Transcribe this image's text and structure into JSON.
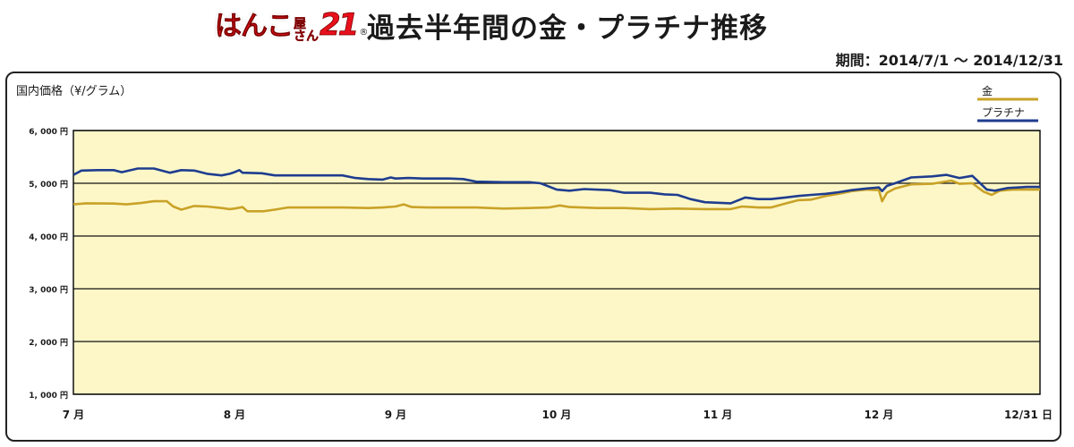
{
  "header": {
    "logo_main": "はんこ",
    "logo_sub1": "屋",
    "logo_sub2": "さん",
    "logo_num": "21",
    "logo_mark": "®",
    "title": "過去半年間の金・プラチナ推移",
    "period": "期間：2014/7/1 〜 2014/12/31"
  },
  "colors": {
    "gold": "#c9a227",
    "platinum": "#1f3d8f",
    "plot_bg": "#fdf7c8",
    "grid": "#111111"
  },
  "chart_data": {
    "type": "line",
    "ylabel": "国内価格（¥/グラム）",
    "ylim": [
      1000,
      6000
    ],
    "yticks": [
      {
        "value": 6000,
        "label": "6, 000 円"
      },
      {
        "value": 5000,
        "label": "5, 000 円"
      },
      {
        "value": 4000,
        "label": "4, 000 円"
      },
      {
        "value": 3000,
        "label": "3, 000 円"
      },
      {
        "value": 2000,
        "label": "2, 000 円"
      },
      {
        "value": 1000,
        "label": "1, 000 円"
      }
    ],
    "xlim": [
      0,
      6
    ],
    "xticks": [
      {
        "value": 0,
        "label": "7 月"
      },
      {
        "value": 1,
        "label": "8 月"
      },
      {
        "value": 2,
        "label": "9 月"
      },
      {
        "value": 3,
        "label": "10 月"
      },
      {
        "value": 4,
        "label": "11 月"
      },
      {
        "value": 5,
        "label": "12 月"
      },
      {
        "value": 6,
        "label": "12/31 日"
      }
    ],
    "legend_position": "top-right",
    "series": [
      {
        "name": "金",
        "color": "#c9a227",
        "points": [
          [
            0,
            4600
          ],
          [
            0.08,
            4620
          ],
          [
            0.25,
            4615
          ],
          [
            0.33,
            4600
          ],
          [
            0.42,
            4625
          ],
          [
            0.5,
            4660
          ],
          [
            0.58,
            4660
          ],
          [
            0.62,
            4560
          ],
          [
            0.67,
            4500
          ],
          [
            0.75,
            4570
          ],
          [
            0.83,
            4560
          ],
          [
            0.92,
            4530
          ],
          [
            0.97,
            4510
          ],
          [
            1.0,
            4520
          ],
          [
            1.05,
            4550
          ],
          [
            1.08,
            4470
          ],
          [
            1.18,
            4470
          ],
          [
            1.25,
            4500
          ],
          [
            1.33,
            4540
          ],
          [
            1.5,
            4540
          ],
          [
            1.67,
            4540
          ],
          [
            1.83,
            4530
          ],
          [
            1.92,
            4540
          ],
          [
            2.0,
            4560
          ],
          [
            2.05,
            4600
          ],
          [
            2.1,
            4550
          ],
          [
            2.2,
            4540
          ],
          [
            2.33,
            4540
          ],
          [
            2.5,
            4540
          ],
          [
            2.67,
            4520
          ],
          [
            2.83,
            4530
          ],
          [
            2.95,
            4540
          ],
          [
            3.02,
            4580
          ],
          [
            3.08,
            4550
          ],
          [
            3.25,
            4530
          ],
          [
            3.42,
            4530
          ],
          [
            3.58,
            4510
          ],
          [
            3.75,
            4520
          ],
          [
            3.92,
            4510
          ],
          [
            4.0,
            4510
          ],
          [
            4.08,
            4510
          ],
          [
            4.15,
            4560
          ],
          [
            4.25,
            4540
          ],
          [
            4.33,
            4540
          ],
          [
            4.4,
            4600
          ],
          [
            4.45,
            4640
          ],
          [
            4.5,
            4680
          ],
          [
            4.58,
            4690
          ],
          [
            4.67,
            4760
          ],
          [
            4.75,
            4800
          ],
          [
            4.83,
            4850
          ],
          [
            4.92,
            4880
          ],
          [
            5.0,
            4870
          ],
          [
            5.02,
            4660
          ],
          [
            5.05,
            4820
          ],
          [
            5.1,
            4900
          ],
          [
            5.2,
            4980
          ],
          [
            5.33,
            4990
          ],
          [
            5.45,
            5050
          ],
          [
            5.5,
            4990
          ],
          [
            5.58,
            5000
          ],
          [
            5.65,
            4840
          ],
          [
            5.7,
            4780
          ],
          [
            5.75,
            4860
          ],
          [
            5.83,
            4880
          ],
          [
            5.92,
            4880
          ],
          [
            6.0,
            4880
          ]
        ]
      },
      {
        "name": "プラチナ",
        "color": "#1f3d8f",
        "points": [
          [
            0,
            5160
          ],
          [
            0.05,
            5240
          ],
          [
            0.15,
            5250
          ],
          [
            0.25,
            5250
          ],
          [
            0.3,
            5210
          ],
          [
            0.4,
            5280
          ],
          [
            0.5,
            5280
          ],
          [
            0.6,
            5200
          ],
          [
            0.67,
            5250
          ],
          [
            0.75,
            5240
          ],
          [
            0.83,
            5180
          ],
          [
            0.92,
            5150
          ],
          [
            0.97,
            5180
          ],
          [
            1.0,
            5210
          ],
          [
            1.03,
            5250
          ],
          [
            1.05,
            5200
          ],
          [
            1.17,
            5190
          ],
          [
            1.25,
            5150
          ],
          [
            1.5,
            5150
          ],
          [
            1.67,
            5150
          ],
          [
            1.75,
            5100
          ],
          [
            1.83,
            5080
          ],
          [
            1.92,
            5070
          ],
          [
            1.97,
            5110
          ],
          [
            2.0,
            5090
          ],
          [
            2.08,
            5100
          ],
          [
            2.17,
            5090
          ],
          [
            2.33,
            5090
          ],
          [
            2.42,
            5080
          ],
          [
            2.5,
            5030
          ],
          [
            2.67,
            5020
          ],
          [
            2.83,
            5020
          ],
          [
            2.9,
            5000
          ],
          [
            3.0,
            4880
          ],
          [
            3.08,
            4860
          ],
          [
            3.17,
            4890
          ],
          [
            3.33,
            4870
          ],
          [
            3.42,
            4820
          ],
          [
            3.58,
            4820
          ],
          [
            3.67,
            4790
          ],
          [
            3.75,
            4780
          ],
          [
            3.83,
            4700
          ],
          [
            3.92,
            4640
          ],
          [
            4.0,
            4630
          ],
          [
            4.08,
            4620
          ],
          [
            4.17,
            4730
          ],
          [
            4.25,
            4700
          ],
          [
            4.33,
            4700
          ],
          [
            4.42,
            4730
          ],
          [
            4.5,
            4760
          ],
          [
            4.58,
            4780
          ],
          [
            4.67,
            4800
          ],
          [
            4.75,
            4830
          ],
          [
            4.83,
            4870
          ],
          [
            4.92,
            4900
          ],
          [
            5.0,
            4920
          ],
          [
            5.02,
            4850
          ],
          [
            5.05,
            4950
          ],
          [
            5.1,
            5000
          ],
          [
            5.2,
            5110
          ],
          [
            5.33,
            5130
          ],
          [
            5.42,
            5160
          ],
          [
            5.5,
            5100
          ],
          [
            5.58,
            5140
          ],
          [
            5.67,
            4880
          ],
          [
            5.72,
            4860
          ],
          [
            5.8,
            4910
          ],
          [
            5.92,
            4930
          ],
          [
            6.0,
            4930
          ]
        ]
      }
    ]
  }
}
